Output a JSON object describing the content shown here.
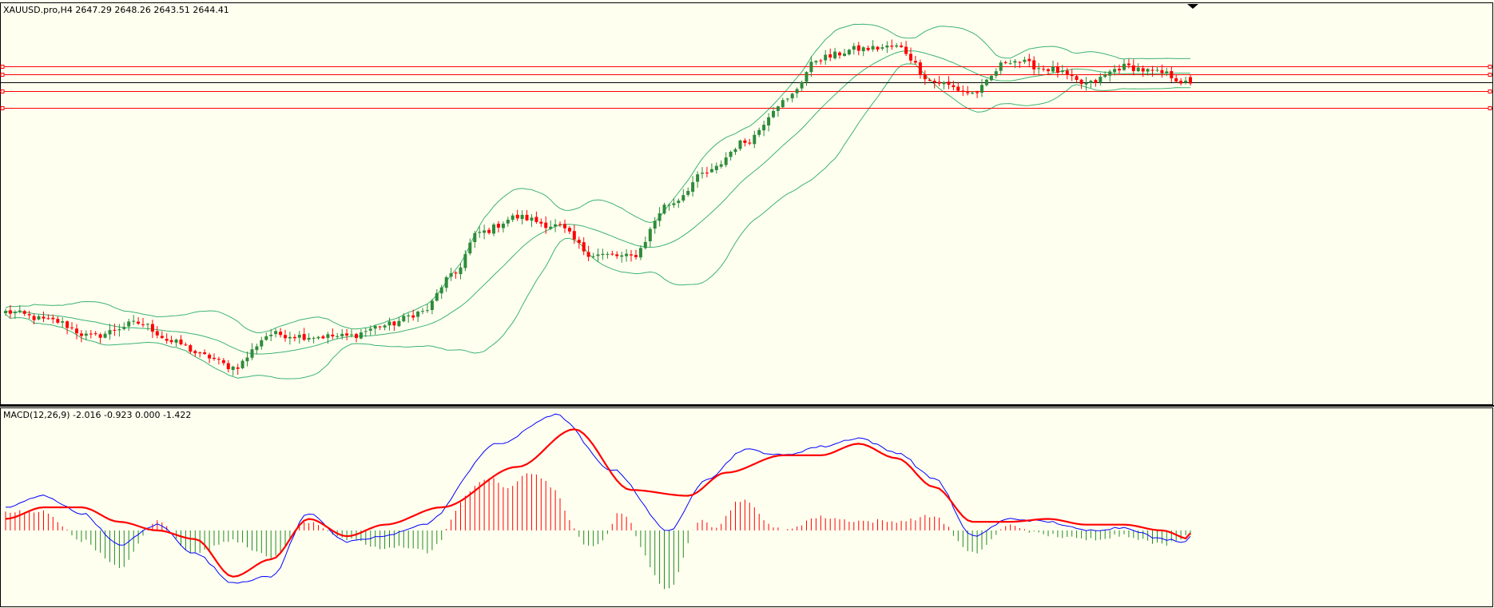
{
  "header": {
    "price_label": "XAUUSD.pro,H4  2647.29 2648.26 2643.51 2644.41",
    "macd_label": "MACD(12,26,9) -2.016 -0.923 0.000 -1.422"
  },
  "colors": {
    "background": "#fffff0",
    "bull": "#2e8b3a",
    "bear": "#ff0000",
    "band": "#3cb371",
    "hline_red": "#ff0000",
    "hline_black": "#000000",
    "macd_line": "#0000ff",
    "signal_line": "#ff0000",
    "hist_pos": "#ff0000",
    "hist_neg": "#228b22"
  },
  "chart_data": [
    {
      "type": "candlestick",
      "symbol": "XAUUSD.pro",
      "timeframe": "H4",
      "ohlc_last": {
        "open": 2647.29,
        "high": 2648.26,
        "low": 2643.51,
        "close": 2644.41
      },
      "anchors": [
        [
          0,
          2541
        ],
        [
          10,
          2537
        ],
        [
          18,
          2530
        ],
        [
          28,
          2536
        ],
        [
          36,
          2527
        ],
        [
          42,
          2521
        ],
        [
          48,
          2516
        ],
        [
          56,
          2531
        ],
        [
          64,
          2530
        ],
        [
          72,
          2530
        ],
        [
          80,
          2535
        ],
        [
          88,
          2541
        ],
        [
          94,
          2557
        ],
        [
          100,
          2577
        ],
        [
          108,
          2584
        ],
        [
          116,
          2580
        ],
        [
          124,
          2567
        ],
        [
          132,
          2566
        ],
        [
          140,
          2590
        ],
        [
          148,
          2604
        ],
        [
          156,
          2618
        ],
        [
          164,
          2636
        ],
        [
          172,
          2656
        ],
        [
          180,
          2660
        ],
        [
          188,
          2661
        ],
        [
          196,
          2645
        ],
        [
          204,
          2640
        ],
        [
          212,
          2655
        ],
        [
          220,
          2651
        ],
        [
          228,
          2644
        ],
        [
          236,
          2652
        ],
        [
          244,
          2649
        ],
        [
          250,
          2644
        ]
      ],
      "candle_count": 251,
      "horizontal_lines": [
        {
          "price": 2652.0,
          "color": "#ff0000"
        },
        {
          "price": 2648.5,
          "color": "#ff0000"
        },
        {
          "price": 2645.0,
          "color": "#000000"
        },
        {
          "price": 2641.0,
          "color": "#ff0000"
        },
        {
          "price": 2633.5,
          "color": "#ff0000"
        }
      ],
      "y_range": [
        2500,
        2680
      ]
    },
    {
      "type": "macd",
      "params": [
        12,
        26,
        9
      ],
      "values": {
        "macd": -2.016,
        "signal": -0.923,
        "zero": 0.0,
        "hist": -1.422
      },
      "macd_anchors": [
        [
          0,
          8
        ],
        [
          8,
          12
        ],
        [
          16,
          6
        ],
        [
          24,
          -5
        ],
        [
          32,
          2
        ],
        [
          40,
          -8
        ],
        [
          48,
          -18
        ],
        [
          56,
          -16
        ],
        [
          64,
          6
        ],
        [
          72,
          -4
        ],
        [
          80,
          -2
        ],
        [
          88,
          2
        ],
        [
          104,
          30
        ],
        [
          116,
          40
        ],
        [
          128,
          21
        ],
        [
          140,
          0
        ],
        [
          148,
          18
        ],
        [
          156,
          28
        ],
        [
          164,
          26
        ],
        [
          172,
          29
        ],
        [
          180,
          32
        ],
        [
          188,
          27
        ],
        [
          196,
          18
        ],
        [
          204,
          -2
        ],
        [
          212,
          4
        ],
        [
          220,
          3
        ],
        [
          228,
          0
        ],
        [
          236,
          1
        ],
        [
          244,
          -3
        ],
        [
          250,
          -4
        ]
      ],
      "signal_anchors": [
        [
          0,
          4
        ],
        [
          8,
          8
        ],
        [
          16,
          8
        ],
        [
          24,
          3
        ],
        [
          32,
          0
        ],
        [
          40,
          -3
        ],
        [
          48,
          -16
        ],
        [
          56,
          -10
        ],
        [
          64,
          4
        ],
        [
          72,
          -2
        ],
        [
          80,
          2
        ],
        [
          92,
          8
        ],
        [
          108,
          22
        ],
        [
          120,
          35
        ],
        [
          132,
          14
        ],
        [
          144,
          12
        ],
        [
          152,
          20
        ],
        [
          164,
          26
        ],
        [
          172,
          26
        ],
        [
          180,
          30
        ],
        [
          188,
          25
        ],
        [
          196,
          15
        ],
        [
          204,
          3
        ],
        [
          212,
          3
        ],
        [
          220,
          4
        ],
        [
          228,
          2
        ],
        [
          236,
          2
        ],
        [
          244,
          0
        ],
        [
          250,
          -3
        ]
      ],
      "y_range": [
        -26,
        42
      ]
    }
  ]
}
